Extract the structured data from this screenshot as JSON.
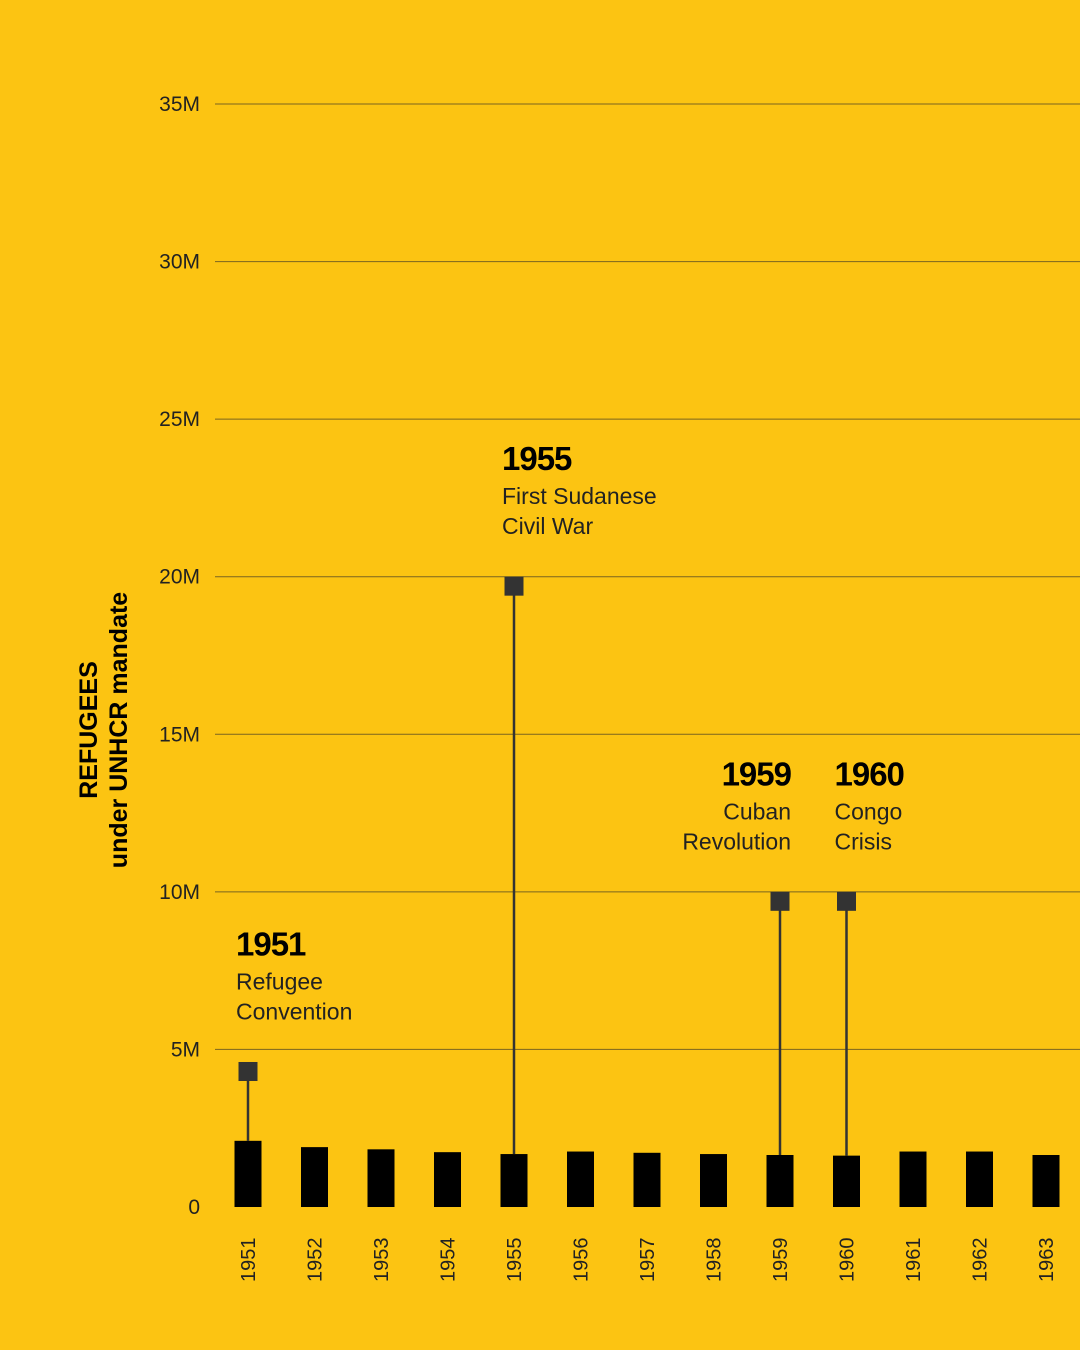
{
  "chart_data": {
    "type": "bar",
    "ylabel": [
      "REFUGEES",
      "under UNHCR mandate"
    ],
    "ylim": [
      0,
      35000000
    ],
    "y_ticks": [
      {
        "value": 0,
        "label": "0"
      },
      {
        "value": 5000000,
        "label": "5M"
      },
      {
        "value": 10000000,
        "label": "10M"
      },
      {
        "value": 15000000,
        "label": "15M"
      },
      {
        "value": 20000000,
        "label": "20M"
      },
      {
        "value": 25000000,
        "label": "25M"
      },
      {
        "value": 30000000,
        "label": "30M"
      },
      {
        "value": 35000000,
        "label": "35M"
      }
    ],
    "categories": [
      "1951",
      "1952",
      "1953",
      "1954",
      "1955",
      "1956",
      "1957",
      "1958",
      "1959",
      "1960",
      "1961",
      "1962",
      "1963"
    ],
    "values": [
      2100000,
      1900000,
      1830000,
      1740000,
      1680000,
      1760000,
      1720000,
      1680000,
      1650000,
      1630000,
      1760000,
      1760000,
      1650000
    ],
    "grid": true,
    "annotations": [
      {
        "category": "1951",
        "marker_value": 4300000,
        "year": "1951",
        "lines": [
          "Refugee",
          "Convention"
        ],
        "align": "left"
      },
      {
        "category": "1955",
        "marker_value": 19700000,
        "year": "1955",
        "lines": [
          "First Sudanese",
          "Civil War"
        ],
        "align": "left"
      },
      {
        "category": "1959",
        "marker_value": 9700000,
        "year": "1959",
        "lines": [
          "Cuban",
          "Revolution"
        ],
        "align": "right"
      },
      {
        "category": "1960",
        "marker_value": 9700000,
        "year": "1960",
        "lines": [
          "Congo",
          "Crisis"
        ],
        "align": "left"
      }
    ],
    "colors": {
      "background": "#FCC412",
      "bar": "#000000",
      "marker": "#333333",
      "grid": "#7a6420"
    }
  }
}
